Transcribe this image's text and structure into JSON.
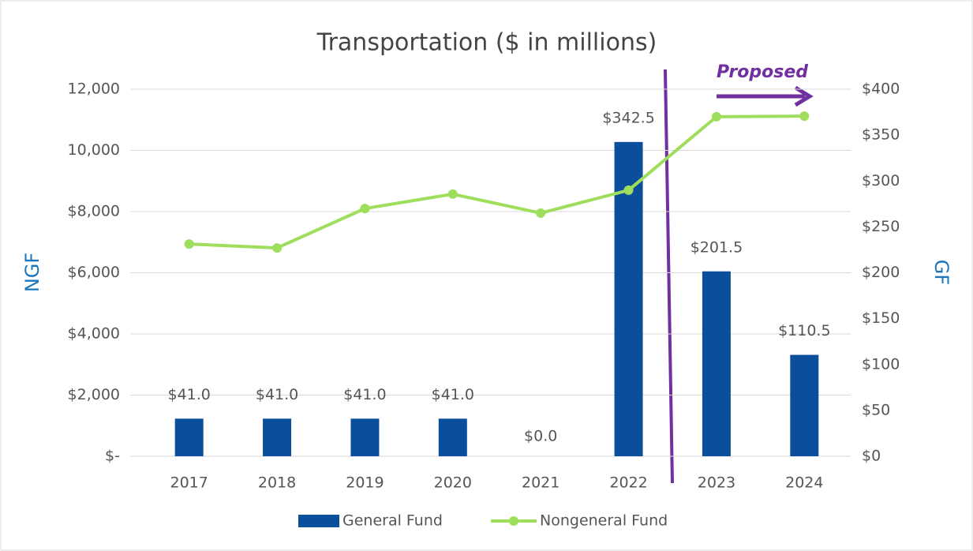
{
  "chart_data": {
    "type": "bar",
    "title": "Transportation ($ in millions)",
    "categories": [
      "2017",
      "2018",
      "2019",
      "2020",
      "2021",
      "2022",
      "2023",
      "2024"
    ],
    "series": [
      {
        "name": "General Fund",
        "type": "bar",
        "axis": "y2",
        "color": "#0b4f9c",
        "values": [
          41.0,
          41.0,
          41.0,
          41.0,
          0.0,
          342.5,
          201.5,
          110.5
        ],
        "value_labels": [
          "$41.0",
          "$41.0",
          "$41.0",
          "$41.0",
          "$0.0",
          "$342.5",
          "$201.5",
          "$110.5"
        ]
      },
      {
        "name": "Nongeneral Fund",
        "type": "line",
        "axis": "y",
        "color": "#9ede5c",
        "values": [
          6940,
          6810,
          8100,
          8570,
          7950,
          8700,
          11100,
          11120
        ]
      }
    ],
    "ylabel": "NGF",
    "y2label": "GF",
    "ylim": [
      0,
      12000
    ],
    "yticks": [
      {
        "value": 0,
        "label": "$-"
      },
      {
        "value": 2000,
        "label": "$2,000"
      },
      {
        "value": 4000,
        "label": "$4,000"
      },
      {
        "value": 6000,
        "label": "$6,000"
      },
      {
        "value": 8000,
        "label": "$8,000"
      },
      {
        "value": 10000,
        "label": "10,000"
      },
      {
        "value": 12000,
        "label": "12,000"
      }
    ],
    "y2lim": [
      0,
      400
    ],
    "y2ticks": [
      {
        "value": 0,
        "label": "$0"
      },
      {
        "value": 50,
        "label": "$50"
      },
      {
        "value": 100,
        "label": "$100"
      },
      {
        "value": 150,
        "label": "$150"
      },
      {
        "value": 200,
        "label": "$200"
      },
      {
        "value": 250,
        "label": "$250"
      },
      {
        "value": 300,
        "label": "$300"
      },
      {
        "value": 350,
        "label": "$350"
      },
      {
        "value": 400,
        "label": "$400"
      }
    ],
    "annotation": "Proposed",
    "grid": true,
    "legend": "bottom"
  }
}
